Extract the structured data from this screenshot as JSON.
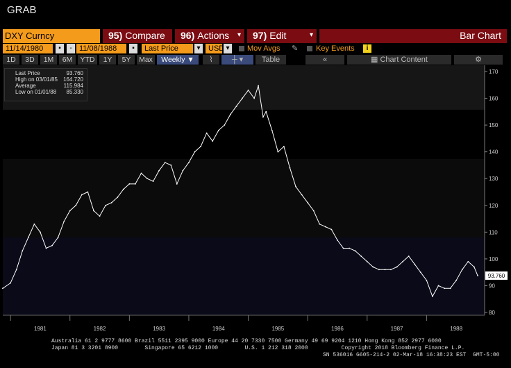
{
  "window_title": "GRAB",
  "toolbar": {
    "ticker": "DXY Curncy",
    "compare": {
      "num": "95)",
      "label": "Compare"
    },
    "actions": {
      "num": "96)",
      "label": "Actions",
      "caret": "▾"
    },
    "edit": {
      "num": "97)",
      "label": "Edit",
      "caret": "▾"
    },
    "view": "Bar Chart"
  },
  "settings": {
    "start_date": "11/14/1980",
    "end_date": "11/08/1988",
    "field": "Last Price",
    "currency": "USD",
    "mov_avgs": "Mov Avgs",
    "key_events": "Key Events",
    "badge": "i"
  },
  "periods": [
    "1D",
    "3D",
    "1M",
    "6M",
    "YTD",
    "1Y",
    "5Y",
    "Max"
  ],
  "frequency": "Weekly",
  "table_label": "Table",
  "chart_content_label": "Chart Content",
  "legend": {
    "last_price_label": "Last Price",
    "last_price": "93.760",
    "high_label": "High on 03/01/85",
    "high": "164.720",
    "average_label": "Average",
    "average": "115.984",
    "low_label": "Low on 01/01/88",
    "low": "85.330"
  },
  "colors": {
    "accent": "#f49b1b",
    "header_red": "#7a0c12",
    "line": "#ffffff",
    "active": "#3a4a7a"
  },
  "chart_data": {
    "type": "line",
    "series": [
      {
        "name": "Last Price",
        "x": [
          1980.87,
          1981.0,
          1981.1,
          1981.2,
          1981.3,
          1981.4,
          1981.5,
          1981.6,
          1981.7,
          1981.8,
          1981.9,
          1982.0,
          1982.1,
          1982.2,
          1982.3,
          1982.4,
          1982.5,
          1982.6,
          1982.7,
          1982.8,
          1982.9,
          1983.0,
          1983.1,
          1983.2,
          1983.3,
          1983.4,
          1983.5,
          1983.6,
          1983.7,
          1983.8,
          1983.9,
          1984.0,
          1984.1,
          1984.2,
          1984.3,
          1984.4,
          1984.5,
          1984.6,
          1984.7,
          1984.8,
          1984.9,
          1985.0,
          1985.1,
          1985.17,
          1985.25,
          1985.3,
          1985.4,
          1985.5,
          1985.6,
          1985.7,
          1985.8,
          1985.9,
          1986.0,
          1986.1,
          1986.2,
          1986.3,
          1986.4,
          1986.5,
          1986.6,
          1986.7,
          1986.8,
          1986.9,
          1987.0,
          1987.1,
          1987.2,
          1987.3,
          1987.4,
          1987.5,
          1987.6,
          1987.7,
          1987.8,
          1987.9,
          1988.0,
          1988.1,
          1988.2,
          1988.3,
          1988.4,
          1988.5,
          1988.6,
          1988.7,
          1988.8,
          1988.86
        ],
        "values": [
          89,
          91,
          96,
          103,
          108,
          113,
          110,
          104,
          105,
          108,
          114,
          118,
          120,
          124,
          125,
          118,
          116,
          120,
          121,
          123,
          126,
          128,
          128,
          132,
          130,
          129,
          133,
          136,
          135,
          128,
          133,
          136,
          140,
          142,
          147,
          144,
          148,
          150,
          154,
          157,
          160,
          163,
          160,
          164.7,
          153,
          155,
          148,
          140,
          142,
          134,
          127,
          124,
          121,
          118,
          113,
          112,
          111,
          107,
          104,
          104,
          103,
          101,
          99,
          97,
          96,
          96,
          96,
          97,
          99,
          101,
          98,
          95,
          92,
          86,
          90,
          89,
          89,
          92,
          96,
          99,
          97,
          93.76
        ]
      }
    ],
    "ylim": [
      80,
      170
    ],
    "yticks": [
      80,
      90,
      100,
      110,
      120,
      130,
      140,
      150,
      160,
      170
    ],
    "xlim": [
      1980.87,
      1988.86
    ],
    "xticks": [
      "1981",
      "1982",
      "1983",
      "1984",
      "1985",
      "1986",
      "1987",
      "1988"
    ],
    "last_label": "93.760",
    "grid": false,
    "legend_position": "top-left"
  },
  "footer": {
    "line1": "Australia 61 2 9777 8600 Brazil 5511 2395 9000 Europe 44 20 7330 7500 Germany 49 69 9204 1210 Hong Kong 852 2977 6000",
    "line2": "Japan 81 3 3201 8900        Singapore 65 6212 1000        U.S. 1 212 318 2000          Copyright 2018 Bloomberg Finance L.P.",
    "line3": "SN 536016 G605-214-2 02-Mar-18 16:38:23 EST  GMT-5:00"
  }
}
